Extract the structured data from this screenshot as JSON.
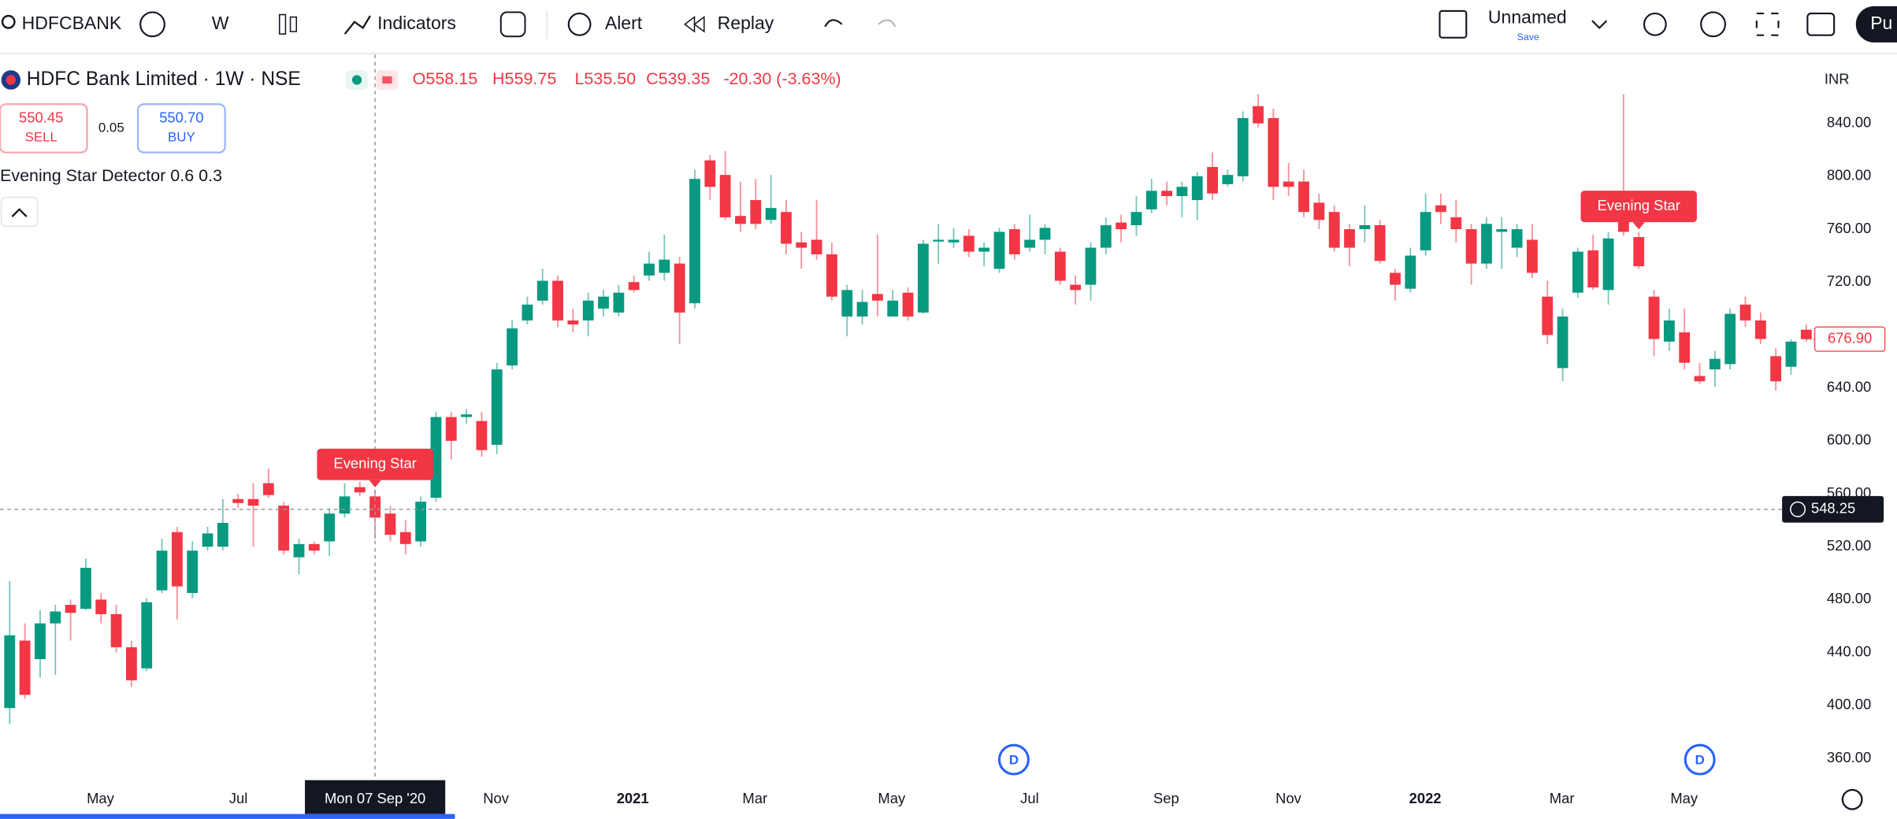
{
  "toolbar": {
    "symbol": "HDFCBANK",
    "interval": "W",
    "indicators": "Indicators",
    "alert": "Alert",
    "replay": "Replay",
    "layout_name": "Unnamed",
    "save": "Save",
    "publish": "Pu"
  },
  "legend": {
    "title": "HDFC Bank Limited · 1W · NSE",
    "open": "O558.15",
    "high": "H559.75",
    "low": "L535.50",
    "close": "C539.35",
    "change": "-20.30 (-3.63%)",
    "sell_price": "550.45",
    "sell": "SELL",
    "spread": "0.05",
    "buy_price": "550.70",
    "buy": "BUY",
    "indicator": "Evening Star Detector 0.6 0.3"
  },
  "chart_data": {
    "type": "candlestick",
    "currency": "INR",
    "up_color": "#089981",
    "down_color": "#f23645",
    "ylim": [
      343.5,
      892
    ],
    "yticks": [
      {
        "value": 360,
        "label": "360.00"
      },
      {
        "value": 400,
        "label": "400.00"
      },
      {
        "value": 440,
        "label": "440.00"
      },
      {
        "value": 480,
        "label": "480.00"
      },
      {
        "value": 520,
        "label": "520.00"
      },
      {
        "value": 560,
        "label": "560.00"
      },
      {
        "value": 600,
        "label": "600.00"
      },
      {
        "value": 640,
        "label": "640.00"
      },
      {
        "value": 680,
        "label": "680.00"
      },
      {
        "value": 720,
        "label": "720.00"
      },
      {
        "value": 760,
        "label": "760.00"
      },
      {
        "value": 800,
        "label": "800.00"
      },
      {
        "value": 840,
        "label": "840.00"
      }
    ],
    "grid": false,
    "x_labels": [
      "May",
      "Jul",
      "Nov",
      "2021",
      "Mar",
      "May",
      "Jul",
      "Sep",
      "Nov",
      "2022",
      "Mar",
      "May"
    ],
    "crosshair_date": "Mon 07 Sep '20",
    "crosshair_price": {
      "value": 548.25,
      "label": "548.25"
    },
    "last_price": {
      "value": 676.9,
      "label": "676.90"
    },
    "annotations": [
      "Evening Star",
      "Evening Star"
    ],
    "ohlc": [
      [
        398,
        494,
        386,
        453
      ],
      [
        449,
        462,
        405,
        408
      ],
      [
        435,
        472,
        421,
        462
      ],
      [
        462,
        476,
        423,
        471
      ],
      [
        476,
        480,
        449,
        470
      ],
      [
        473,
        511,
        472,
        504
      ],
      [
        480,
        485,
        462,
        469
      ],
      [
        469,
        476,
        440,
        444
      ],
      [
        444,
        449,
        414,
        419
      ],
      [
        428,
        481,
        426,
        478
      ],
      [
        487,
        526,
        485,
        517
      ],
      [
        531,
        535,
        465,
        490
      ],
      [
        485,
        524,
        481,
        517
      ],
      [
        520,
        535,
        517,
        530
      ],
      [
        520,
        556,
        517,
        538
      ],
      [
        556,
        560,
        549,
        553
      ],
      [
        556,
        568,
        520,
        551
      ],
      [
        568,
        579,
        557,
        559
      ],
      [
        551,
        554,
        514,
        517
      ],
      [
        512,
        526,
        499,
        522
      ],
      [
        522,
        524,
        514,
        517
      ],
      [
        524,
        549,
        513,
        545
      ],
      [
        545,
        568,
        542,
        558
      ],
      [
        565,
        569,
        558,
        561
      ],
      [
        558,
        563,
        526,
        542
      ],
      [
        545,
        551,
        524,
        529
      ],
      [
        531,
        540,
        514,
        522
      ],
      [
        524,
        558,
        520,
        554
      ],
      [
        557,
        622,
        554,
        618
      ],
      [
        618,
        622,
        586,
        600
      ],
      [
        618,
        624,
        613,
        620
      ],
      [
        615,
        622,
        588,
        593
      ],
      [
        597,
        659,
        590,
        654
      ],
      [
        657,
        691,
        654,
        685
      ],
      [
        691,
        709,
        688,
        703
      ],
      [
        706,
        730,
        703,
        721
      ],
      [
        721,
        725,
        686,
        691
      ],
      [
        691,
        700,
        682,
        688
      ],
      [
        691,
        712,
        679,
        706
      ],
      [
        700,
        714,
        694,
        709
      ],
      [
        697,
        718,
        694,
        712
      ],
      [
        720,
        725,
        712,
        714
      ],
      [
        725,
        743,
        721,
        734
      ],
      [
        727,
        756,
        721,
        737
      ],
      [
        734,
        739,
        673,
        697
      ],
      [
        704,
        805,
        700,
        798
      ],
      [
        812,
        816,
        782,
        792
      ],
      [
        801,
        819,
        767,
        769
      ],
      [
        770,
        796,
        758,
        764
      ],
      [
        782,
        798,
        760,
        764
      ],
      [
        767,
        801,
        764,
        776
      ],
      [
        773,
        782,
        741,
        749
      ],
      [
        750,
        758,
        730,
        746
      ],
      [
        752,
        782,
        737,
        741
      ],
      [
        741,
        750,
        706,
        709
      ],
      [
        694,
        718,
        679,
        714
      ],
      [
        694,
        714,
        688,
        705
      ],
      [
        711,
        756,
        694,
        706
      ],
      [
        694,
        714,
        694,
        706
      ],
      [
        712,
        716,
        691,
        694
      ],
      [
        697,
        752,
        696,
        749
      ],
      [
        751,
        764,
        734,
        752
      ],
      [
        750,
        761,
        746,
        752
      ],
      [
        755,
        760,
        739,
        743
      ],
      [
        743,
        750,
        732,
        746
      ],
      [
        730,
        761,
        727,
        758
      ],
      [
        760,
        764,
        737,
        741
      ],
      [
        746,
        771,
        743,
        752
      ],
      [
        752,
        764,
        741,
        761
      ],
      [
        743,
        746,
        718,
        721
      ],
      [
        718,
        725,
        703,
        714
      ],
      [
        718,
        750,
        706,
        746
      ],
      [
        746,
        769,
        741,
        763
      ],
      [
        765,
        771,
        750,
        760
      ],
      [
        763,
        785,
        755,
        773
      ],
      [
        775,
        798,
        772,
        789
      ],
      [
        789,
        796,
        778,
        785
      ],
      [
        785,
        796,
        769,
        792
      ],
      [
        782,
        803,
        767,
        800
      ],
      [
        807,
        818,
        782,
        787
      ],
      [
        794,
        805,
        792,
        801
      ],
      [
        800,
        849,
        796,
        844
      ],
      [
        853,
        862,
        837,
        840
      ],
      [
        844,
        851,
        782,
        792
      ],
      [
        796,
        810,
        785,
        792
      ],
      [
        796,
        805,
        769,
        773
      ],
      [
        780,
        787,
        760,
        767
      ],
      [
        773,
        778,
        743,
        746
      ],
      [
        760,
        764,
        732,
        746
      ],
      [
        760,
        778,
        750,
        763
      ],
      [
        763,
        767,
        734,
        736
      ],
      [
        727,
        730,
        706,
        718
      ],
      [
        715,
        746,
        712,
        740
      ],
      [
        744,
        787,
        740,
        773
      ],
      [
        778,
        787,
        764,
        773
      ],
      [
        769,
        782,
        750,
        760
      ],
      [
        760,
        764,
        718,
        734
      ],
      [
        734,
        769,
        730,
        764
      ],
      [
        758,
        769,
        730,
        760
      ],
      [
        746,
        764,
        739,
        760
      ],
      [
        752,
        764,
        723,
        727
      ],
      [
        709,
        721,
        673,
        680
      ],
      [
        655,
        700,
        645,
        694
      ],
      [
        712,
        746,
        708,
        743
      ],
      [
        744,
        756,
        714,
        716
      ],
      [
        714,
        758,
        703,
        753
      ],
      [
        771,
        862,
        755,
        758
      ],
      [
        754,
        758,
        730,
        732
      ],
      [
        709,
        714,
        664,
        677
      ],
      [
        675,
        700,
        668,
        691
      ],
      [
        682,
        700,
        654,
        659
      ],
      [
        649,
        659,
        643,
        645
      ],
      [
        654,
        668,
        641,
        662
      ],
      [
        658,
        700,
        654,
        696
      ],
      [
        703,
        709,
        686,
        691
      ],
      [
        691,
        697,
        673,
        677
      ],
      [
        664,
        670,
        638,
        645
      ],
      [
        656,
        677,
        650,
        675
      ],
      [
        684,
        688,
        675,
        676.9
      ]
    ]
  }
}
